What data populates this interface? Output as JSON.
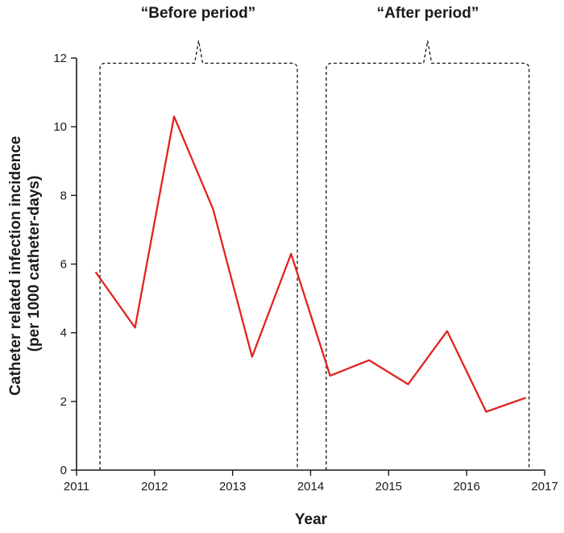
{
  "chart_data": {
    "type": "line",
    "title": "",
    "xlabel": "Year",
    "ylabel_line1": "Catheter related infection incidence",
    "ylabel_line2": "(per 1000 catheter-days)",
    "xlim": [
      2011,
      2017
    ],
    "ylim": [
      0,
      12
    ],
    "xticks": [
      2011,
      2012,
      2013,
      2014,
      2015,
      2016,
      2017
    ],
    "yticks": [
      0,
      2,
      4,
      6,
      8,
      10,
      12
    ],
    "grid": false,
    "legend": "none",
    "series": [
      {
        "name": "Catheter related infection incidence",
        "color": "#e02420",
        "x": [
          2011.25,
          2011.75,
          2012.25,
          2012.75,
          2013.25,
          2013.75,
          2014.25,
          2014.75,
          2015.25,
          2015.75,
          2016.25,
          2016.75
        ],
        "y": [
          5.75,
          4.15,
          10.3,
          7.6,
          3.3,
          6.3,
          2.75,
          3.2,
          2.5,
          4.05,
          1.7,
          2.1
        ]
      }
    ],
    "annotations": [
      {
        "label": "“Before period”",
        "x_start": 2011.3,
        "x_end": 2013.83,
        "y_top": 11.85
      },
      {
        "label": "“After period”",
        "x_start": 2014.2,
        "x_end": 2016.8,
        "y_top": 11.85
      }
    ],
    "annotation_color": "#1a1a1a",
    "axis_color": "#1a1a1a"
  }
}
